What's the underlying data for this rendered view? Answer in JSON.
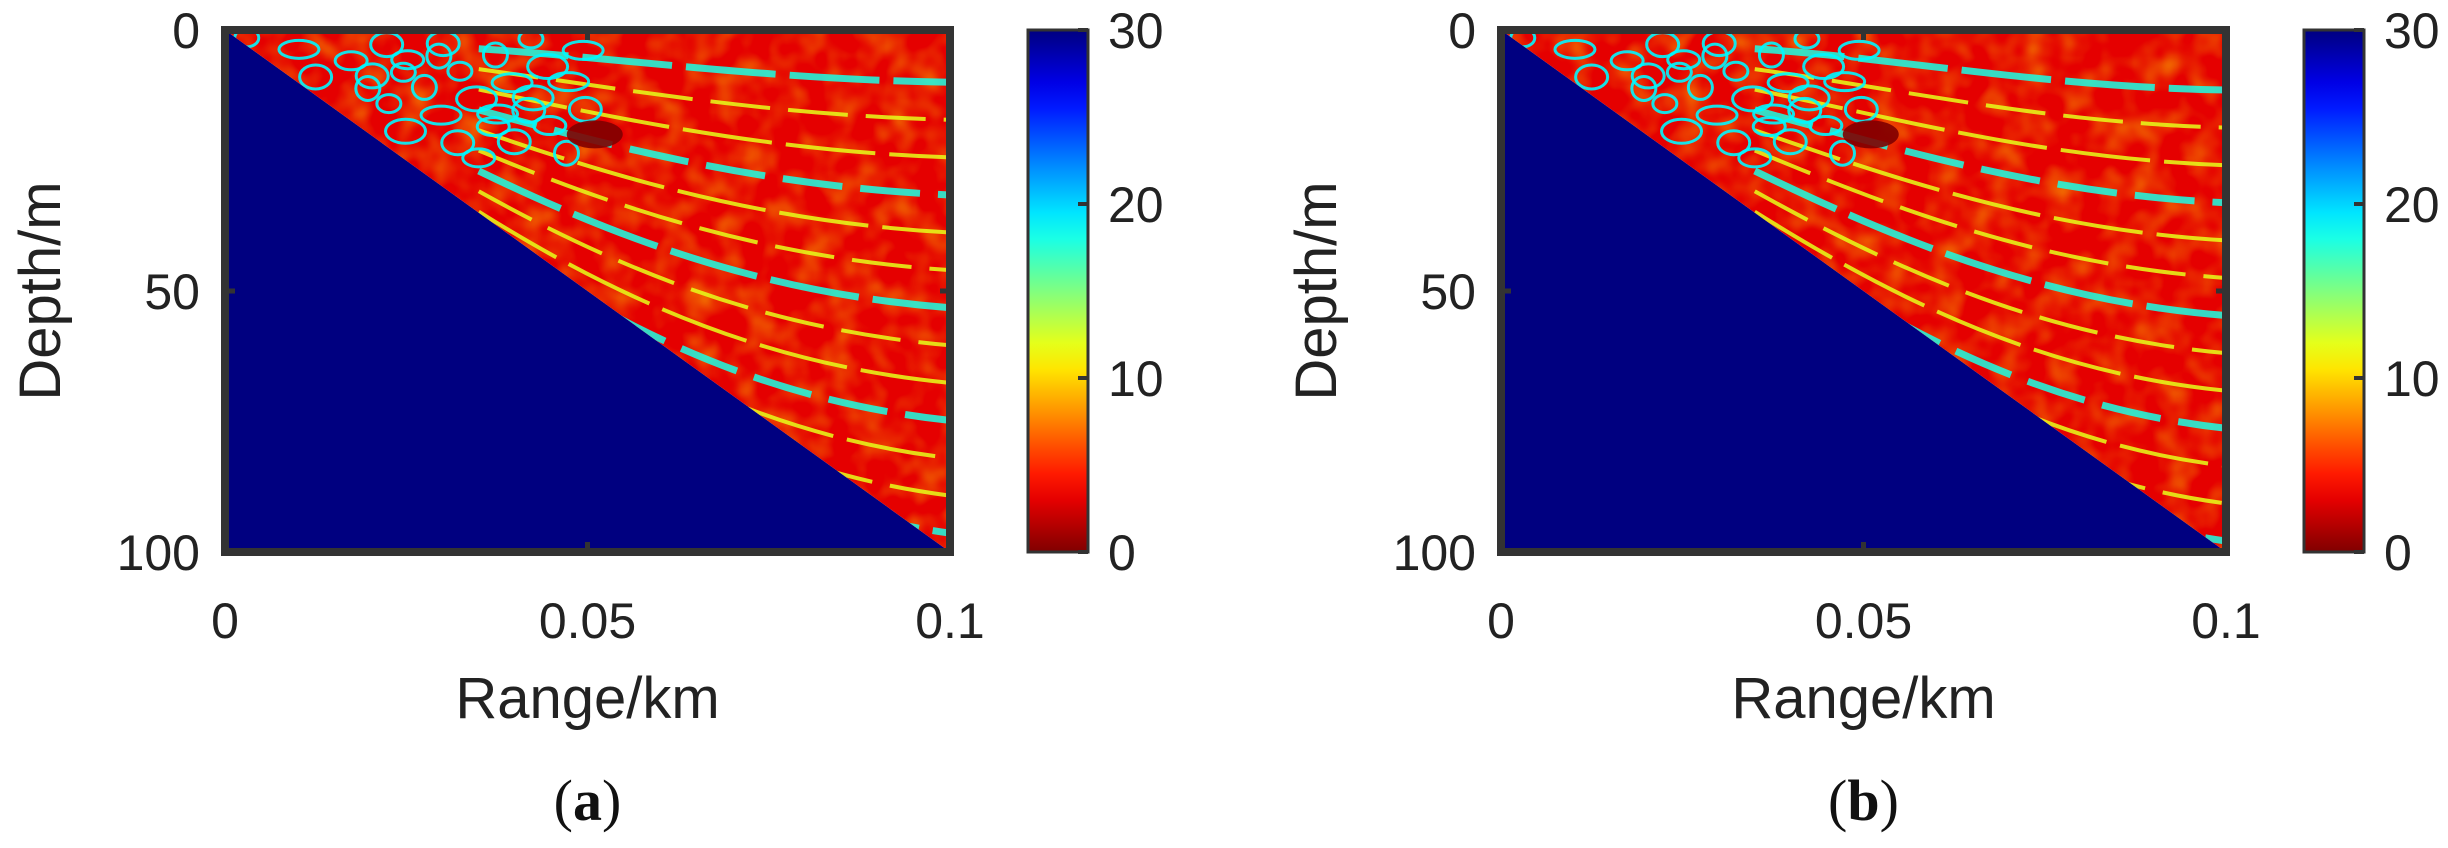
{
  "chart_data": [
    {
      "type": "heatmap",
      "caption": "a",
      "xlabel": "Range/km",
      "ylabel": "Depth/m",
      "x_ticks": [
        "0",
        "0.05",
        "0.1"
      ],
      "x_tick_values": [
        0,
        0.05,
        0.1
      ],
      "y_ticks": [
        "0",
        "50",
        "100"
      ],
      "y_tick_values": [
        0,
        50,
        100
      ],
      "xlim": [
        0,
        0.1
      ],
      "ylim": [
        0,
        100
      ],
      "y_reversed": true,
      "colormap": "jet_reversed",
      "colorbar": {
        "ticks": [
          "0",
          "10",
          "20",
          "30"
        ],
        "tick_values": [
          0,
          10,
          20,
          30
        ],
        "range": [
          0,
          30
        ],
        "low_color": "#800000",
        "high_color": "#00008f"
      },
      "bottom": {
        "type": "sloping_seabed",
        "depth_at_range_start": 0,
        "depth_at_range_end": 100
      },
      "masked_value": 30
    },
    {
      "type": "heatmap",
      "caption": "b",
      "xlabel": "Range/km",
      "ylabel": "Depth/m",
      "x_ticks": [
        "0",
        "0.05",
        "0.1"
      ],
      "x_tick_values": [
        0,
        0.05,
        0.1
      ],
      "y_ticks": [
        "0",
        "50",
        "100"
      ],
      "y_tick_values": [
        0,
        50,
        100
      ],
      "xlim": [
        0,
        0.1
      ],
      "ylim": [
        0,
        100
      ],
      "y_reversed": true,
      "colormap": "jet_reversed",
      "colorbar": {
        "ticks": [
          "0",
          "10",
          "20",
          "30"
        ],
        "tick_values": [
          0,
          10,
          20,
          30
        ],
        "range": [
          0,
          30
        ],
        "low_color": "#800000",
        "high_color": "#00008f"
      },
      "bottom": {
        "type": "sloping_seabed",
        "depth_at_range_start": 0,
        "depth_at_range_end": 100
      },
      "masked_value": 30
    }
  ]
}
